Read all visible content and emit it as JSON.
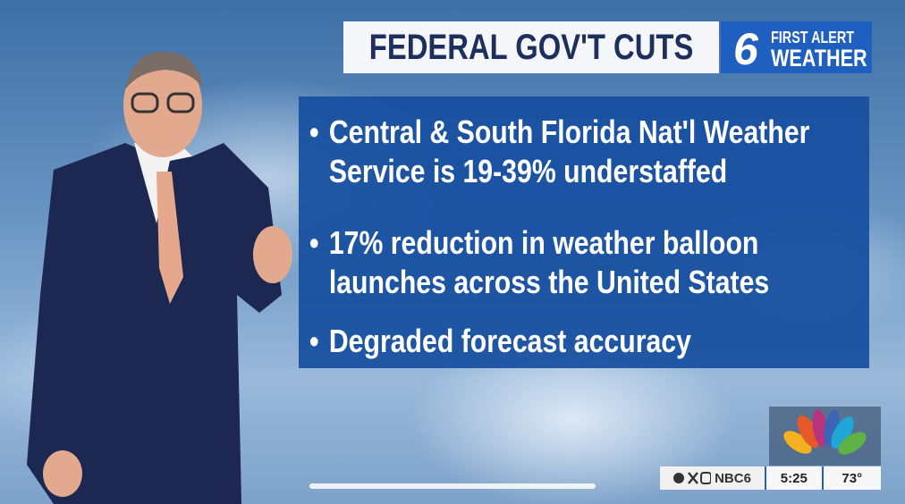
{
  "header": {
    "title": "FEDERAL GOV'T CUTS",
    "logo": {
      "number": "6",
      "line1": "FIRST ALERT",
      "line2": "WEATHER"
    }
  },
  "bullets": [
    "Central & South Florida Nat'l Weather Service is 19-39% understaffed",
    "17% reduction in weather balloon launches across the United States",
    "Degraded forecast accuracy"
  ],
  "ticker": {
    "handle": "NBC6",
    "time": "5:25",
    "temperature": "73°"
  }
}
